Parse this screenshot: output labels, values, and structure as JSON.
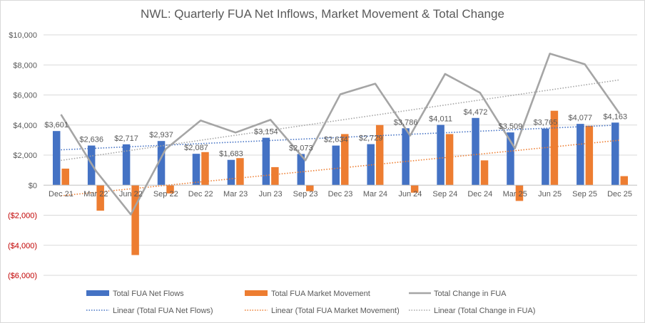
{
  "chart_data": {
    "type": "bar",
    "title": "NWL: Quarterly FUA Net Inflows, Market Movement & Total Change",
    "categories": [
      "Dec 21",
      "Mar 22",
      "Jun 22",
      "Sep 22",
      "Dec 22",
      "Mar 23",
      "Jun 23",
      "Sep 23",
      "Dec 23",
      "Mar 24",
      "Jun 24",
      "Sep 24",
      "Dec 24",
      "Mar 25",
      "Jun 25",
      "Sep 25",
      "Dec 25"
    ],
    "ylim": [
      -6000,
      10000
    ],
    "yticks": [
      -6000,
      -4000,
      -2000,
      0,
      2000,
      4000,
      6000,
      8000,
      10000
    ],
    "ytick_labels": [
      "($6,000)",
      "($4,000)",
      "($2,000)",
      "$0",
      "$2,000",
      "$4,000",
      "$6,000",
      "$8,000",
      "$10,000"
    ],
    "colors": {
      "net_flows": "#4472c4",
      "market_movement": "#ed7d31",
      "total_change": "#a5a5a5",
      "negative_tick": "#c00000",
      "text": "#595959",
      "grid": "#d9d9d9"
    },
    "series": [
      {
        "name": "Total FUA Net Flows",
        "kind": "bar",
        "values": [
          3601,
          2636,
          2717,
          2937,
          2087,
          1683,
          3154,
          2073,
          2634,
          2729,
          3786,
          4011,
          4472,
          3509,
          3765,
          4077,
          4163
        ],
        "data_labels": [
          "$3,601",
          "$2,636",
          "$2,717",
          "$2,937",
          "$2,087",
          "$1,683",
          "$3,154",
          "$2,073",
          "$2,634",
          "$2,729",
          "$3,786",
          "$4,011",
          "$4,472",
          "$3,509",
          "$3,765",
          "$4,077",
          "$4,163"
        ]
      },
      {
        "name": "Total FUA Market Movement",
        "kind": "bar",
        "values": [
          1100,
          -1700,
          -4650,
          -550,
          2200,
          1800,
          1200,
          -400,
          3400,
          4000,
          -500,
          3400,
          1650,
          -1050,
          4950,
          3950,
          600
        ]
      },
      {
        "name": "Total Change in FUA",
        "kind": "line",
        "values": [
          4700,
          950,
          -1950,
          2400,
          4300,
          3500,
          4350,
          1650,
          6050,
          6750,
          3300,
          7400,
          6150,
          2450,
          8750,
          8050,
          4750
        ]
      }
    ],
    "trendlines": [
      {
        "name": "Linear (Total FUA Net Flows)",
        "of": 0
      },
      {
        "name": "Linear (Total FUA Market Movement)",
        "of": 1
      },
      {
        "name": "Linear (Total Change in FUA)",
        "of": 2
      }
    ],
    "legend": {
      "position": "bottom"
    }
  }
}
